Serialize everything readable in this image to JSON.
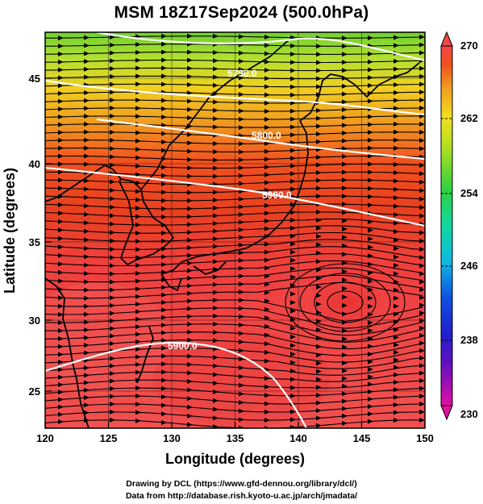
{
  "title": "MSM 18Z17Sep2024 (500.0hPa)",
  "x_axis": {
    "label": "Longitude (degrees)",
    "range": [
      120,
      150
    ],
    "ticks": [
      "120",
      "125",
      "130",
      "135",
      "140",
      "145",
      "150"
    ]
  },
  "y_axis": {
    "label": "Latitude (degrees)",
    "range": [
      22.4,
      47.6
    ],
    "ticks": [
      "25",
      "30",
      "35",
      "40",
      "45"
    ]
  },
  "colorbar": {
    "range": [
      230,
      270
    ],
    "labels": [
      "270",
      "262",
      "254",
      "246",
      "238",
      "230"
    ],
    "colors": [
      "#e0109c",
      "#2222cc",
      "#10b8e0",
      "#10d890",
      "#44cc22",
      "#aadd22",
      "#f0e020",
      "#f0a020",
      "#f04020",
      "#f04848"
    ]
  },
  "contours": [
    {
      "label": "5790.0"
    },
    {
      "label": "5800.0"
    },
    {
      "label": "5900.0"
    },
    {
      "label": "5900.0"
    }
  ],
  "credits": {
    "line1": "Drawing by DCL (https://www.gfd-dennou.org/library/dcl/)",
    "line2": "Data from http://database.rish.kyoto-u.ac.jp/arch/jmadata/"
  },
  "chart_data": {
    "type": "heatmap",
    "title": "MSM 18Z17Sep2024 (500.0hPa)",
    "xlabel": "Longitude (degrees)",
    "ylabel": "Latitude (degrees)",
    "xlim": [
      120,
      150
    ],
    "ylim": [
      22.4,
      47.6
    ],
    "x_ticks": [
      120,
      125,
      130,
      135,
      140,
      145,
      150
    ],
    "y_ticks": [
      25,
      30,
      35,
      40,
      45
    ],
    "colorbar_range": [
      230,
      270
    ],
    "colorbar_ticks": [
      230,
      238,
      246,
      254,
      262,
      270
    ],
    "contour_levels": [
      5790.0,
      5800.0,
      5900.0
    ],
    "grid": true
  }
}
